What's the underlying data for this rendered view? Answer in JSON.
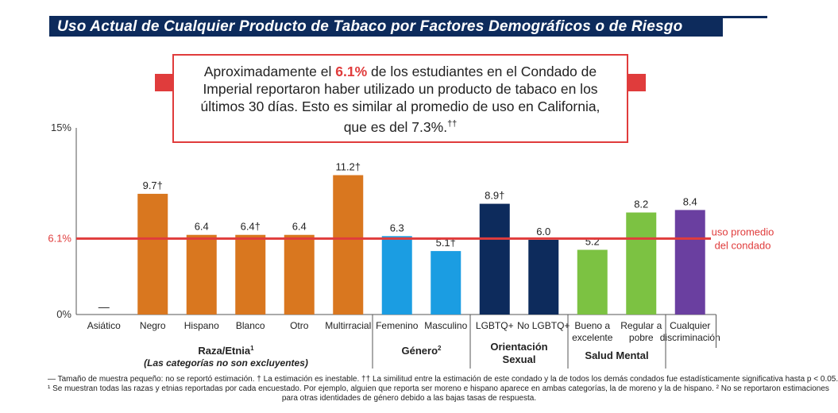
{
  "title": "Uso Actual de Cualquier Producto de Tabaco por Factores Demográficos o de Riesgo",
  "callout": {
    "pre": "Aproximadamente el",
    "highlight": "6.1%",
    "post": "de los estudiantes en el Condado de Imperial reportaron haber utilizado un producto de tabaco en los últimos 30 días. Esto es similar al promedio de uso en California, que es del 7.3%.",
    "mark": "††"
  },
  "colors": {
    "title_bg": "#0d2b5c",
    "accent_red": "#e03c3c",
    "raza": "#d9771f",
    "genero": "#1b9de2",
    "orientacion": "#0d2b5c",
    "salud": "#7cc242",
    "discriminacion": "#6a3fa0"
  },
  "chart_data": {
    "type": "bar",
    "ylim": [
      0,
      15
    ],
    "ytick_labels": [
      "15%",
      "0%"
    ],
    "reference_line": {
      "value": 6.1,
      "label": "6.1%",
      "legend_line1": "uso promedio",
      "legend_line2": "del condado"
    },
    "bars": [
      {
        "category": "Asiático",
        "value": null,
        "label": "—",
        "group": "raza"
      },
      {
        "category": "Negro",
        "value": 9.7,
        "label": "9.7†",
        "group": "raza"
      },
      {
        "category": "Hispano",
        "value": 6.4,
        "label": "6.4",
        "group": "raza"
      },
      {
        "category": "Blanco",
        "value": 6.4,
        "label": "6.4†",
        "group": "raza"
      },
      {
        "category": "Otro",
        "value": 6.4,
        "label": "6.4",
        "group": "raza"
      },
      {
        "category": "Multirracial",
        "value": 11.2,
        "label": "11.2†",
        "group": "raza"
      },
      {
        "category": "Femenino",
        "value": 6.3,
        "label": "6.3",
        "group": "genero"
      },
      {
        "category": "Masculino",
        "value": 5.1,
        "label": "5.1†",
        "group": "genero"
      },
      {
        "category": "LGBTQ+",
        "value": 8.9,
        "label": "8.9†",
        "group": "orientacion"
      },
      {
        "category": "No LGBTQ+",
        "value": 6.0,
        "label": "6.0",
        "group": "orientacion"
      },
      {
        "category": "Bueno a excelente",
        "category_lines": [
          "Bueno a",
          "excelente"
        ],
        "value": 5.2,
        "label": "5.2",
        "group": "salud"
      },
      {
        "category": "Regular a pobre",
        "category_lines": [
          "Regular a",
          "pobre"
        ],
        "value": 8.2,
        "label": "8.2",
        "group": "salud"
      },
      {
        "category": "Cualquier discriminación",
        "category_lines": [
          "Cualquier",
          "discriminación"
        ],
        "value": 8.4,
        "label": "8.4",
        "group": "discriminacion"
      }
    ],
    "groups": [
      {
        "id": "raza",
        "label": "Raza/Etnia",
        "sup": "1",
        "sub": "(Las categorías no son excluyentes)"
      },
      {
        "id": "genero",
        "label": "Género",
        "sup": "2"
      },
      {
        "id": "orientacion",
        "label_line1": "Orientación",
        "label_line2": "Sexual"
      },
      {
        "id": "salud",
        "label": "Salud Mental"
      }
    ]
  },
  "footnotes": [
    "— Tamaño de muestra pequeño: no se reportó estimación. † La estimación es inestable. †† La similitud entre la estimación de este condado y la de todos los demás condados fue estadísticamente significativa hasta p < 0.05.",
    "¹ Se muestran todas las razas y etnias reportadas por cada encuestado. Por ejemplo, alguien que reporta ser moreno e hispano aparece en ambas categorías, la de moreno y la de hispano. ² No se reportaron estimaciones",
    "para otras identidades de género debido a las bajas tasas de respuesta."
  ]
}
